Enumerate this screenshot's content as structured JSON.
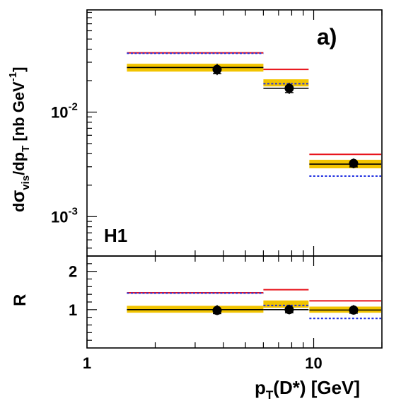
{
  "chart_data": {
    "type": "scatter",
    "xlabel_main": "p",
    "xlabel_sub": "T",
    "xlabel_rest": "(D*) [GeV]",
    "x_ticks": [
      "1",
      "10"
    ],
    "xlim": [
      1,
      20
    ],
    "xscale": "log",
    "colors": {
      "band": "#f2c400",
      "red": "#e8141c",
      "blue": "#1f2fe0",
      "data": "#000000"
    },
    "panels": [
      {
        "name": "cross-section",
        "ylabel": "dσ_vis/dp_T [nb GeV^-1]",
        "ylabel_parts": {
          "d": "d",
          "sigma": "σ",
          "vis": "vis",
          "mid": "/dp",
          "T": "T",
          "unit": " [nb GeV",
          "exp": "-1",
          "close": "]"
        },
        "yscale": "log",
        "ylim": [
          0.00042,
          0.095
        ],
        "y_ticks": [
          {
            "base": "10",
            "exp": "-2",
            "value": 0.01
          },
          {
            "base": "10",
            "exp": "-3",
            "value": 0.001
          }
        ],
        "labels": {
          "experiment": "H1",
          "panel": "a)"
        },
        "bins": [
          {
            "xlo": 1.5,
            "xhi": 6.0,
            "x": 3.75,
            "y": 0.0256,
            "err_lo": 0.0226,
            "err_hi": 0.029,
            "nlo": 0.0267,
            "band": [
              0.0244,
              0.029
            ],
            "red": 0.0369,
            "blue": 0.0365
          },
          {
            "xlo": 6.0,
            "xhi": 9.5,
            "x": 7.8,
            "y": 0.0169,
            "err_lo": 0.0149,
            "err_hi": 0.0191,
            "nlo": 0.0169,
            "band": [
              0.0176,
              0.0206
            ],
            "red": 0.0256,
            "blue": 0.0187
          },
          {
            "xlo": 9.5,
            "xhi": 20.0,
            "x": 15.0,
            "y": 0.00323,
            "err_lo": 0.0029,
            "err_hi": 0.0036,
            "nlo": 0.00318,
            "band": [
              0.0029,
              0.0035
            ],
            "red": 0.00394,
            "blue": 0.00244
          }
        ]
      },
      {
        "name": "ratio",
        "ylabel": "R",
        "ylim": [
          0,
          2.4
        ],
        "y_ticks": [
          {
            "label": "1",
            "value": 1
          },
          {
            "label": "2",
            "value": 2
          }
        ],
        "bins": [
          {
            "xlo": 1.5,
            "xhi": 6.0,
            "x": 3.75,
            "y": 0.98,
            "err_lo": 0.86,
            "err_hi": 1.12,
            "nlo": 1.0,
            "band": [
              0.92,
              1.1
            ],
            "red": 1.44,
            "blue": 1.43
          },
          {
            "xlo": 6.0,
            "xhi": 9.5,
            "x": 7.8,
            "y": 1.0,
            "err_lo": 0.88,
            "err_hi": 1.13,
            "nlo": 1.0,
            "band": [
              1.05,
              1.24
            ],
            "red": 1.52,
            "blue": 1.11
          },
          {
            "xlo": 9.5,
            "xhi": 20.0,
            "x": 15.0,
            "y": 0.99,
            "err_lo": 0.87,
            "err_hi": 1.12,
            "nlo": 0.99,
            "band": [
              0.92,
              1.08
            ],
            "red": 1.23,
            "blue": 0.77
          }
        ]
      }
    ]
  }
}
